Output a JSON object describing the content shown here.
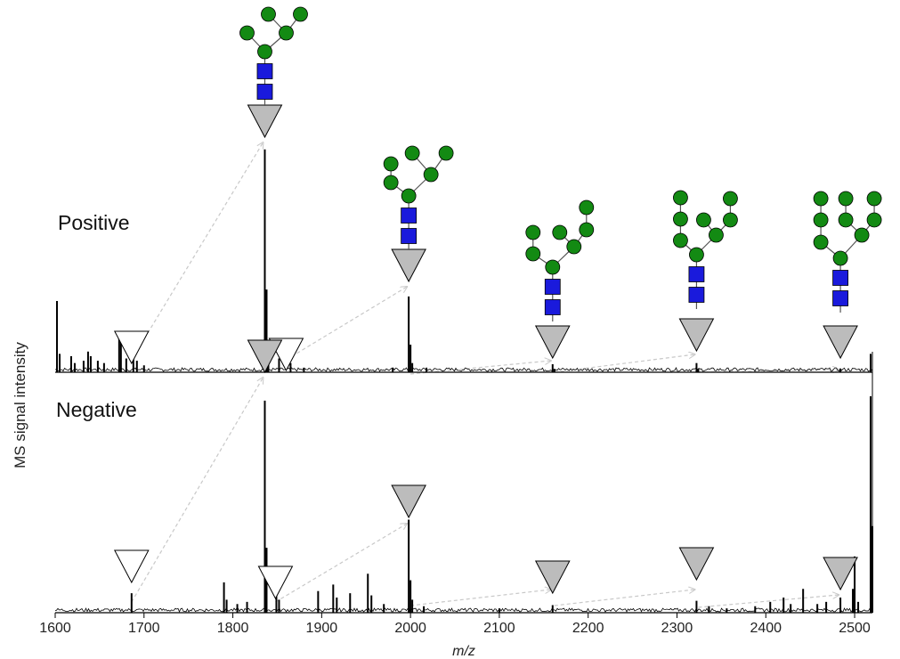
{
  "chart_data": {
    "type": "line",
    "ylabel": "MS signal intensity",
    "xlabel": "m/z",
    "xlim": [
      1600,
      2520
    ],
    "xticks": [
      1600,
      1700,
      1800,
      1900,
      2000,
      2100,
      2200,
      2300,
      2400,
      2500
    ],
    "panels": [
      {
        "name": "Positive",
        "ylim": [
          0,
          1
        ],
        "peaks": [
          {
            "x": 1602,
            "y": 0.31
          },
          {
            "x": 1605,
            "y": 0.08
          },
          {
            "x": 1618,
            "y": 0.07
          },
          {
            "x": 1622,
            "y": 0.04
          },
          {
            "x": 1632,
            "y": 0.05
          },
          {
            "x": 1637,
            "y": 0.09
          },
          {
            "x": 1640,
            "y": 0.07
          },
          {
            "x": 1648,
            "y": 0.05
          },
          {
            "x": 1655,
            "y": 0.04
          },
          {
            "x": 1672,
            "y": 0.18
          },
          {
            "x": 1674,
            "y": 0.14
          },
          {
            "x": 1680,
            "y": 0.06
          },
          {
            "x": 1688,
            "y": 0.1
          },
          {
            "x": 1692,
            "y": 0.05
          },
          {
            "x": 1700,
            "y": 0.03
          },
          {
            "x": 1836,
            "y": 0.97
          },
          {
            "x": 1838,
            "y": 0.36
          },
          {
            "x": 1840,
            "y": 0.13
          },
          {
            "x": 1852,
            "y": 0.06
          },
          {
            "x": 1865,
            "y": 0.04
          },
          {
            "x": 1880,
            "y": 0.02
          },
          {
            "x": 1980,
            "y": 0.02
          },
          {
            "x": 1998,
            "y": 0.33
          },
          {
            "x": 2000,
            "y": 0.12
          },
          {
            "x": 2002,
            "y": 0.04
          },
          {
            "x": 2018,
            "y": 0.02
          },
          {
            "x": 2160,
            "y": 0.035
          },
          {
            "x": 2162,
            "y": 0.015
          },
          {
            "x": 2322,
            "y": 0.04
          },
          {
            "x": 2324,
            "y": 0.015
          },
          {
            "x": 2484,
            "y": 0.015
          },
          {
            "x": 2518,
            "y": 0.08
          }
        ],
        "annotations": [
          {
            "x": 1686,
            "style": "open",
            "structure": "Hex5HexNAc2"
          },
          {
            "x": 1836,
            "style": "filled",
            "structure": "Hex5HexNAc2"
          },
          {
            "x": 1860,
            "style": "open",
            "structure": "Hex6HexNAc2"
          },
          {
            "x": 1998,
            "style": "filled",
            "structure": "Hex6HexNAc2"
          },
          {
            "x": 2160,
            "style": "filled",
            "structure": "Hex7HexNAc2"
          },
          {
            "x": 2322,
            "style": "filled",
            "structure": "Hex8HexNAc2"
          },
          {
            "x": 2484,
            "style": "filled",
            "structure": "Hex9HexNAc2"
          }
        ]
      },
      {
        "name": "Negative",
        "ylim": [
          0,
          1
        ],
        "peaks": [
          {
            "x": 1686,
            "y": 0.09
          },
          {
            "x": 1790,
            "y": 0.14
          },
          {
            "x": 1793,
            "y": 0.06
          },
          {
            "x": 1805,
            "y": 0.04
          },
          {
            "x": 1816,
            "y": 0.05
          },
          {
            "x": 1836,
            "y": 0.98
          },
          {
            "x": 1838,
            "y": 0.3
          },
          {
            "x": 1849,
            "y": 0.08
          },
          {
            "x": 1852,
            "y": 0.06
          },
          {
            "x": 1896,
            "y": 0.1
          },
          {
            "x": 1913,
            "y": 0.13
          },
          {
            "x": 1917,
            "y": 0.07
          },
          {
            "x": 1932,
            "y": 0.09
          },
          {
            "x": 1952,
            "y": 0.18
          },
          {
            "x": 1956,
            "y": 0.08
          },
          {
            "x": 1970,
            "y": 0.04
          },
          {
            "x": 1998,
            "y": 0.43
          },
          {
            "x": 2000,
            "y": 0.15
          },
          {
            "x": 2002,
            "y": 0.06
          },
          {
            "x": 2015,
            "y": 0.03
          },
          {
            "x": 2100,
            "y": 0.02
          },
          {
            "x": 2160,
            "y": 0.035
          },
          {
            "x": 2322,
            "y": 0.055
          },
          {
            "x": 2336,
            "y": 0.03
          },
          {
            "x": 2356,
            "y": 0.02
          },
          {
            "x": 2388,
            "y": 0.03
          },
          {
            "x": 2405,
            "y": 0.05
          },
          {
            "x": 2420,
            "y": 0.07
          },
          {
            "x": 2428,
            "y": 0.04
          },
          {
            "x": 2442,
            "y": 0.11
          },
          {
            "x": 2458,
            "y": 0.04
          },
          {
            "x": 2468,
            "y": 0.05
          },
          {
            "x": 2484,
            "y": 0.07
          },
          {
            "x": 2498,
            "y": 0.11
          },
          {
            "x": 2500,
            "y": 0.26
          },
          {
            "x": 2504,
            "y": 0.05
          },
          {
            "x": 2518,
            "y": 1.0
          },
          {
            "x": 2520,
            "y": 0.4
          }
        ],
        "annotations": [
          {
            "x": 1686,
            "style": "open",
            "structure": "Hex5HexNAc2"
          },
          {
            "x": 1836,
            "style": "filled",
            "structure": "Hex5HexNAc2"
          },
          {
            "x": 1848,
            "style": "open",
            "structure": "Hex6HexNAc2"
          },
          {
            "x": 1998,
            "style": "filled",
            "structure": "Hex6HexNAc2"
          },
          {
            "x": 2160,
            "style": "filled",
            "structure": "Hex7HexNAc2"
          },
          {
            "x": 2322,
            "style": "filled",
            "structure": "Hex8HexNAc2"
          },
          {
            "x": 2484,
            "style": "filled",
            "structure": "Hex9HexNAc2"
          }
        ]
      }
    ],
    "connectors": [
      {
        "panel": "Positive",
        "from": 1686,
        "to": 1836
      },
      {
        "panel": "Positive",
        "from": 1860,
        "to": 1998
      },
      {
        "panel": "Positive",
        "from": 2000,
        "to": 2160
      },
      {
        "panel": "Positive",
        "from": 2162,
        "to": 2322
      },
      {
        "panel": "Positive",
        "from": 2324,
        "to": 2484
      },
      {
        "panel": "Negative",
        "from": 1686,
        "to": 1836
      },
      {
        "panel": "Negative",
        "from": 1848,
        "to": 1998
      },
      {
        "panel": "Negative",
        "from": 2000,
        "to": 2160
      },
      {
        "panel": "Negative",
        "from": 2162,
        "to": 2322
      },
      {
        "panel": "Negative",
        "from": 2324,
        "to": 2484
      }
    ],
    "glycans": [
      {
        "x": 1836,
        "name": "Man5",
        "mannose_count": 5,
        "glcnac_count": 2
      },
      {
        "x": 1998,
        "name": "Man6",
        "mannose_count": 6,
        "glcnac_count": 2
      },
      {
        "x": 2160,
        "name": "Man7",
        "mannose_count": 7,
        "glcnac_count": 2
      },
      {
        "x": 2322,
        "name": "Man8",
        "mannose_count": 8,
        "glcnac_count": 2
      },
      {
        "x": 2484,
        "name": "Man9",
        "mannose_count": 9,
        "glcnac_count": 2
      }
    ],
    "colors": {
      "trace": "#000000",
      "mannose": "#138a13",
      "glcnac": "#1a1adc",
      "reducing_end_filled": "#bcbcbc",
      "reducing_end_open": "#ffffff",
      "connector": "#c8c8c8"
    }
  }
}
